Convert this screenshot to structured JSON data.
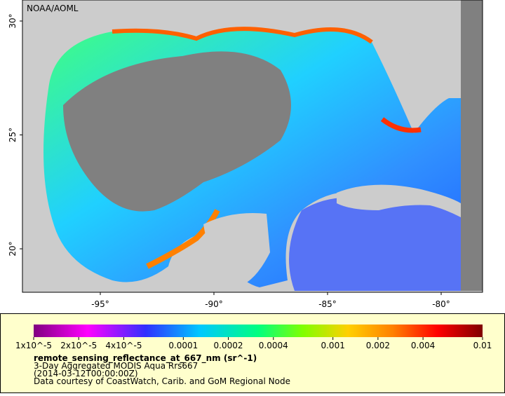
{
  "map": {
    "watermark": "NOAA/AOML",
    "lat_ticks": [
      {
        "value": 30,
        "label": "30°"
      },
      {
        "value": 25,
        "label": "25°"
      },
      {
        "value": 20,
        "label": "20°"
      }
    ],
    "lon_ticks": [
      {
        "value": -95,
        "label": "-95°"
      },
      {
        "value": -90,
        "label": "-90°"
      },
      {
        "value": -85,
        "label": "-85°"
      },
      {
        "value": -80,
        "label": "-80°"
      }
    ]
  },
  "legend": {
    "colorbar_ticks": [
      {
        "value": 1e-05,
        "label": "1x10^-5"
      },
      {
        "value": 2e-05,
        "label": "2x10^-5"
      },
      {
        "value": 4e-05,
        "label": "4x10^-5"
      },
      0.0001,
      0.0002,
      0.0004,
      0.001,
      0.002,
      0.004,
      0.01
    ],
    "colorbar_range": [
      1e-05,
      0.01
    ],
    "variable": "remote_sensing_reflectance_at_667_nm (sr^-1)",
    "lines": [
      "3-Day Aggregated MODIS Aqua Rrs667",
      "(2014-03-12T00:00:00Z)",
      "Data courtesy of CoastWatch, Carib. and GoM Regional Node"
    ]
  }
}
